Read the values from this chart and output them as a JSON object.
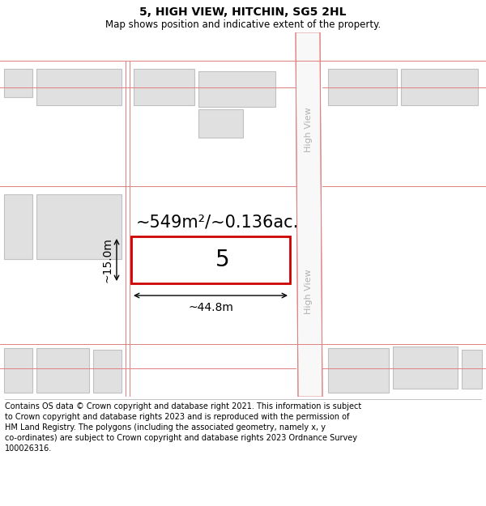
{
  "title": "5, HIGH VIEW, HITCHIN, SG5 2HL",
  "subtitle": "Map shows position and indicative extent of the property.",
  "footer_lines": [
    "Contains OS data © Crown copyright and database right 2021. This information is subject",
    "to Crown copyright and database rights 2023 and is reproduced with the permission of",
    "HM Land Registry. The polygons (including the associated geometry, namely x, y",
    "co-ordinates) are subject to Crown copyright and database rights 2023 Ordnance Survey",
    "100026316."
  ],
  "area_label": "~549m²/~0.136ac.",
  "width_label": "~44.8m",
  "height_label": "~15.0m",
  "plot_number": "5",
  "bg_color": "#ffffff",
  "map_bg": "#f0f0f0",
  "building_fill": "#e0e0e0",
  "building_outline": "#c0c0c0",
  "highlight_fill": "#ffffff",
  "highlight_outline": "#cc0000",
  "road_line_color": "#e08080",
  "street_label_color": "#b0b0b0",
  "annotation_color": "#000000",
  "title_fontsize": 10,
  "subtitle_fontsize": 8.5,
  "footer_fontsize": 7.0,
  "area_fontsize": 15,
  "dim_fontsize": 10,
  "plot_num_fontsize": 20
}
